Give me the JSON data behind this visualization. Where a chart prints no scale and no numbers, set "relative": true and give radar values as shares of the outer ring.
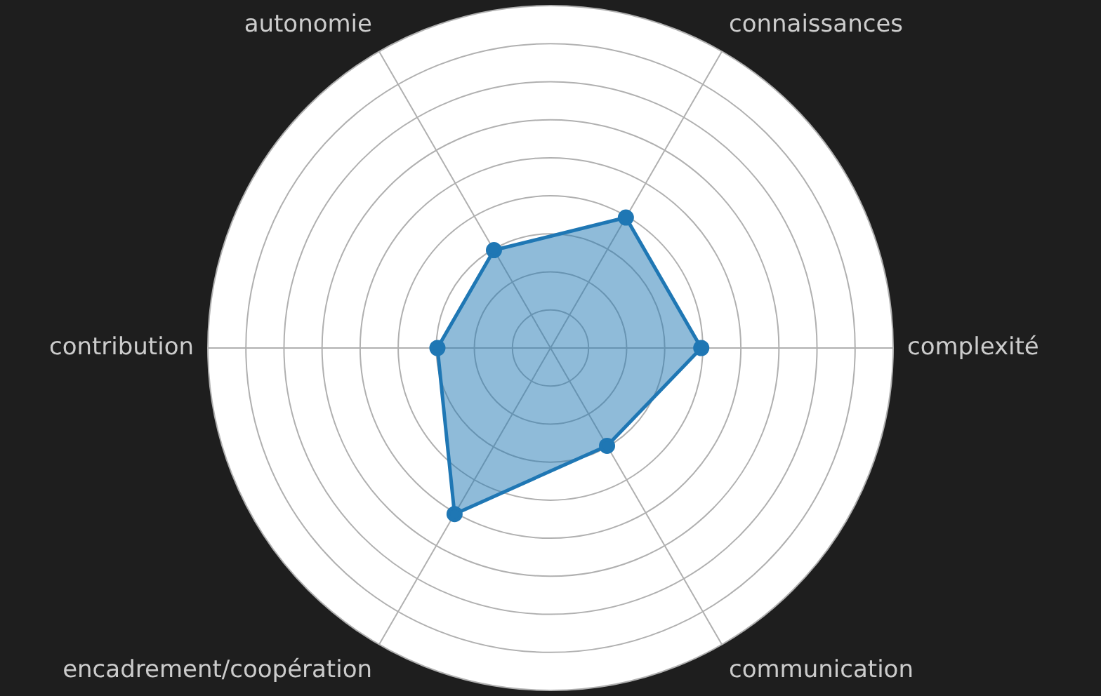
{
  "chart_data": {
    "type": "radar",
    "relative": true,
    "grid": true,
    "marker": "circle",
    "line_style": "solid",
    "categories": [
      "connaissances",
      "complexité",
      "communication",
      "encadrement/coopération",
      "contribution",
      "autonomie"
    ],
    "series": [
      {
        "color": "#1f77b4",
        "values": [
          0.44,
          0.44,
          0.33,
          0.56,
          0.33,
          0.33
        ]
      }
    ]
  }
}
